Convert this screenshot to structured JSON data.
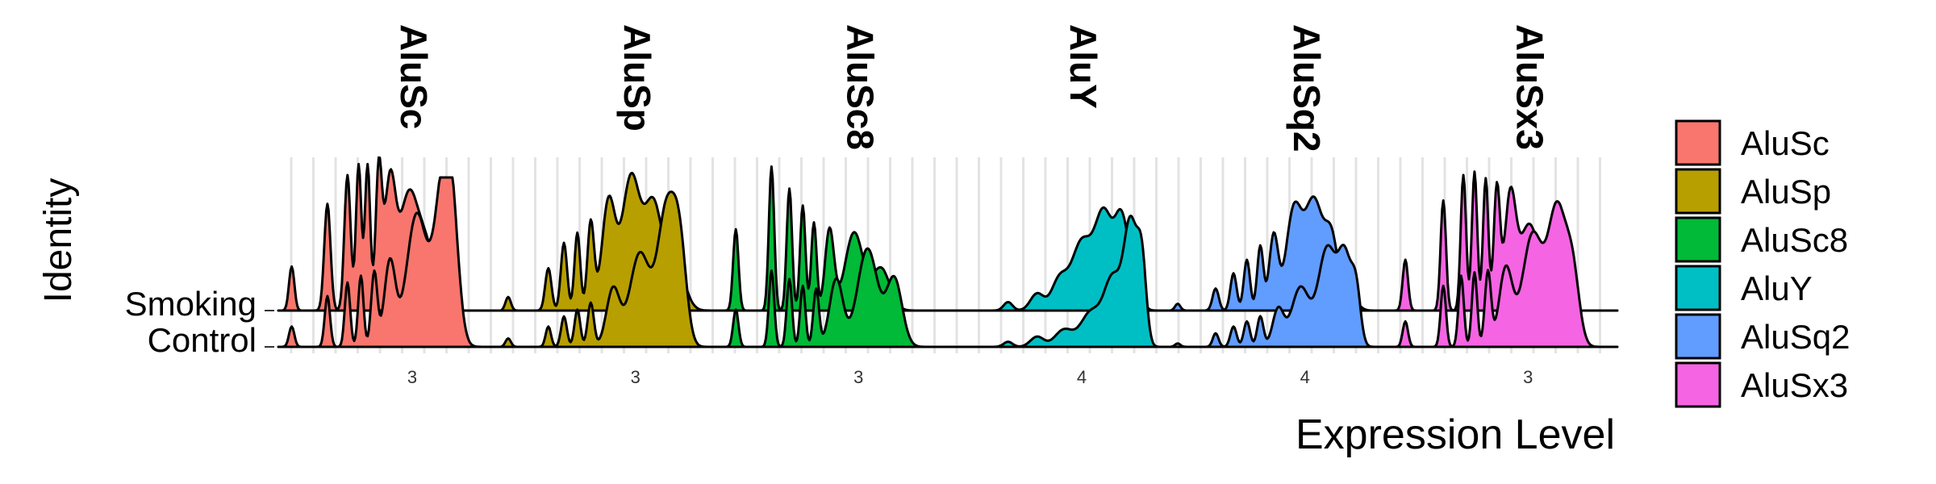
{
  "chart_data": {
    "type": "ridgeline",
    "xlabel": "Expression Level",
    "ylabel": "Identity",
    "identities": [
      "Smoking",
      "Control"
    ],
    "legend_position": "right",
    "grid": true,
    "panels": [
      {
        "name": "AluSc",
        "color": "#F8766D",
        "x_ticks": [
          "3"
        ],
        "series": [
          {
            "identity": "Smoking",
            "peaks": [
              [
                0.06,
                0.26,
                0.012
              ],
              [
                0.22,
                0.63,
                0.014
              ],
              [
                0.31,
                0.8,
                0.014
              ],
              [
                0.36,
                0.86,
                0.012
              ],
              [
                0.4,
                0.86,
                0.012
              ],
              [
                0.45,
                0.8,
                0.014
              ],
              [
                0.5,
                0.74,
                0.025
              ],
              [
                0.58,
                0.62,
                0.04
              ],
              [
                0.66,
                0.38,
                0.045
              ]
            ]
          },
          {
            "identity": "Control",
            "peaks": [
              [
                0.06,
                0.12,
                0.012
              ],
              [
                0.22,
                0.3,
                0.012
              ],
              [
                0.31,
                0.38,
                0.012
              ],
              [
                0.37,
                0.42,
                0.012
              ],
              [
                0.43,
                0.44,
                0.014
              ],
              [
                0.5,
                0.5,
                0.025
              ],
              [
                0.62,
                0.78,
                0.045
              ],
              [
                0.74,
                0.95,
                0.04
              ],
              [
                0.78,
                0.45,
                0.03
              ]
            ]
          }
        ]
      },
      {
        "name": "AluSp",
        "color": "#B79F00",
        "x_ticks": [
          "3"
        ],
        "series": [
          {
            "identity": "Smoking",
            "peaks": [
              [
                0.03,
                0.08,
                0.012
              ],
              [
                0.21,
                0.25,
                0.014
              ],
              [
                0.28,
                0.4,
                0.014
              ],
              [
                0.34,
                0.46,
                0.013
              ],
              [
                0.4,
                0.52,
                0.015
              ],
              [
                0.48,
                0.64,
                0.03
              ],
              [
                0.58,
                0.78,
                0.04
              ],
              [
                0.68,
                0.62,
                0.04
              ],
              [
                0.78,
                0.28,
                0.04
              ]
            ]
          },
          {
            "identity": "Control",
            "peaks": [
              [
                0.03,
                0.05,
                0.012
              ],
              [
                0.21,
                0.12,
                0.012
              ],
              [
                0.28,
                0.18,
                0.013
              ],
              [
                0.34,
                0.22,
                0.013
              ],
              [
                0.4,
                0.26,
                0.014
              ],
              [
                0.5,
                0.34,
                0.03
              ],
              [
                0.62,
                0.55,
                0.045
              ],
              [
                0.74,
                0.8,
                0.04
              ],
              [
                0.8,
                0.5,
                0.03
              ]
            ]
          }
        ]
      },
      {
        "name": "AluSc8",
        "color": "#00BA38",
        "x_ticks": [
          "3"
        ],
        "series": [
          {
            "identity": "Smoking",
            "peaks": [
              [
                0.05,
                0.48,
                0.012
              ],
              [
                0.21,
                0.85,
                0.012
              ],
              [
                0.29,
                0.72,
                0.012
              ],
              [
                0.35,
                0.62,
                0.012
              ],
              [
                0.4,
                0.52,
                0.012
              ],
              [
                0.47,
                0.48,
                0.02
              ],
              [
                0.58,
                0.46,
                0.04
              ],
              [
                0.7,
                0.25,
                0.04
              ]
            ]
          },
          {
            "identity": "Control",
            "peaks": [
              [
                0.05,
                0.22,
                0.012
              ],
              [
                0.21,
                0.45,
                0.012
              ],
              [
                0.29,
                0.4,
                0.012
              ],
              [
                0.35,
                0.36,
                0.012
              ],
              [
                0.41,
                0.34,
                0.013
              ],
              [
                0.5,
                0.4,
                0.03
              ],
              [
                0.64,
                0.58,
                0.045
              ],
              [
                0.76,
                0.4,
                0.035
              ]
            ]
          }
        ]
      },
      {
        "name": "AluY",
        "color": "#00BFC4",
        "x_ticks": [
          "4"
        ],
        "series": [
          {
            "identity": "Smoking",
            "peaks": [
              [
                0.27,
                0.05,
                0.02
              ],
              [
                0.4,
                0.1,
                0.03
              ],
              [
                0.5,
                0.18,
                0.035
              ],
              [
                0.6,
                0.4,
                0.045
              ],
              [
                0.7,
                0.56,
                0.04
              ],
              [
                0.78,
                0.5,
                0.03
              ],
              [
                0.84,
                0.2,
                0.025
              ]
            ]
          },
          {
            "identity": "Control",
            "peaks": [
              [
                0.27,
                0.03,
                0.02
              ],
              [
                0.4,
                0.06,
                0.03
              ],
              [
                0.52,
                0.1,
                0.04
              ],
              [
                0.64,
                0.2,
                0.045
              ],
              [
                0.74,
                0.4,
                0.04
              ],
              [
                0.82,
                0.7,
                0.03
              ],
              [
                0.87,
                0.45,
                0.02
              ]
            ]
          }
        ]
      },
      {
        "name": "AluSq2",
        "color": "#619CFF",
        "x_ticks": [
          "4"
        ],
        "series": [
          {
            "identity": "Smoking",
            "peaks": [
              [
                0.03,
                0.04,
                0.012
              ],
              [
                0.2,
                0.13,
                0.014
              ],
              [
                0.28,
                0.22,
                0.014
              ],
              [
                0.34,
                0.3,
                0.014
              ],
              [
                0.4,
                0.38,
                0.014
              ],
              [
                0.46,
                0.44,
                0.02
              ],
              [
                0.55,
                0.58,
                0.035
              ],
              [
                0.64,
                0.64,
                0.04
              ],
              [
                0.72,
                0.4,
                0.03
              ],
              [
                0.8,
                0.1,
                0.03
              ]
            ]
          },
          {
            "identity": "Control",
            "peaks": [
              [
                0.03,
                0.02,
                0.012
              ],
              [
                0.2,
                0.08,
                0.013
              ],
              [
                0.28,
                0.12,
                0.014
              ],
              [
                0.34,
                0.15,
                0.014
              ],
              [
                0.4,
                0.18,
                0.014
              ],
              [
                0.48,
                0.22,
                0.025
              ],
              [
                0.58,
                0.35,
                0.04
              ],
              [
                0.7,
                0.58,
                0.04
              ],
              [
                0.78,
                0.5,
                0.03
              ],
              [
                0.83,
                0.3,
                0.02
              ]
            ]
          }
        ]
      },
      {
        "name": "AluSx3",
        "color": "#F564E3",
        "x_ticks": [
          "3"
        ],
        "series": [
          {
            "identity": "Smoking",
            "peaks": [
              [
                0.05,
                0.3,
                0.012
              ],
              [
                0.22,
                0.65,
                0.012
              ],
              [
                0.31,
                0.8,
                0.012
              ],
              [
                0.36,
                0.82,
                0.012
              ],
              [
                0.41,
                0.78,
                0.012
              ],
              [
                0.46,
                0.72,
                0.014
              ],
              [
                0.52,
                0.66,
                0.025
              ],
              [
                0.6,
                0.48,
                0.04
              ],
              [
                0.68,
                0.2,
                0.04
              ]
            ]
          },
          {
            "identity": "Control",
            "peaks": [
              [
                0.05,
                0.15,
                0.012
              ],
              [
                0.22,
                0.36,
                0.012
              ],
              [
                0.3,
                0.42,
                0.012
              ],
              [
                0.36,
                0.44,
                0.012
              ],
              [
                0.42,
                0.44,
                0.014
              ],
              [
                0.5,
                0.46,
                0.03
              ],
              [
                0.62,
                0.66,
                0.045
              ],
              [
                0.73,
                0.8,
                0.04
              ],
              [
                0.8,
                0.4,
                0.03
              ]
            ]
          }
        ]
      }
    ]
  }
}
